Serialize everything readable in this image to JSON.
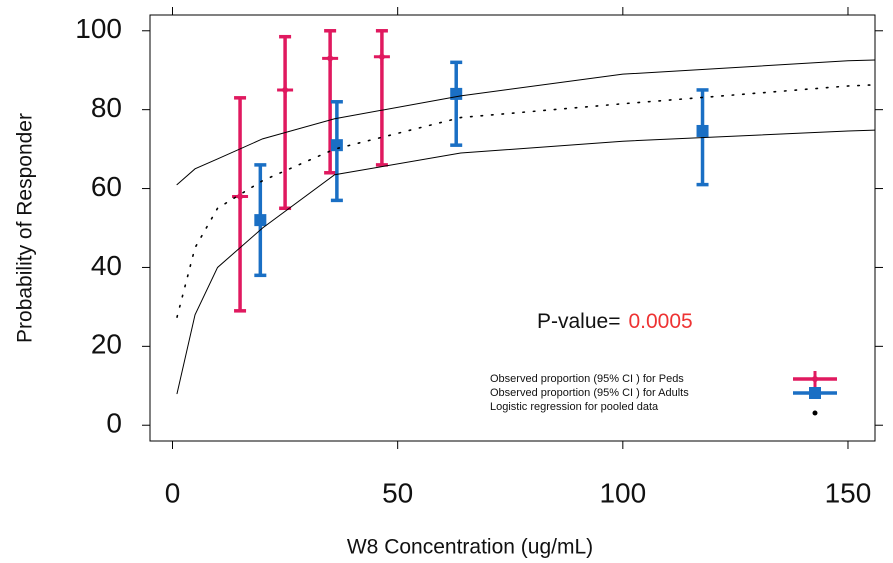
{
  "chart_data": {
    "type": "scatter",
    "x_label": "W8 Concentration (ug/mL)",
    "y_label": "Probability of Responder",
    "xlim": [
      -5,
      156
    ],
    "ylim": [
      -4,
      104
    ],
    "xticks": [
      0,
      50,
      100,
      150
    ],
    "yticks": [
      0,
      20,
      40,
      60,
      80,
      100
    ],
    "legend": "lower right",
    "annotation": {
      "text": "P-value=",
      "value": "0.0005",
      "value_color": "#ee3333"
    },
    "series": [
      {
        "name": "Observed proportion (95% CI ) for Peds",
        "color": "#e0195f",
        "marker": "cross",
        "x": [
          15,
          25,
          35,
          46.5
        ],
        "values": [
          58,
          85,
          93,
          93.4
        ],
        "lower": [
          29,
          55,
          64,
          66
        ],
        "upper": [
          83,
          98.5,
          100,
          100
        ]
      },
      {
        "name": "Observed proportion (95% CI ) for Adults",
        "color": "#1a6fc4",
        "marker": "square",
        "x": [
          19.5,
          36.5,
          63,
          117.7
        ],
        "values": [
          52,
          71,
          84,
          74.6
        ],
        "lower": [
          38,
          57,
          71,
          61
        ],
        "upper": [
          66,
          82,
          92,
          85
        ]
      },
      {
        "name": "Logistic regression for pooled data",
        "type": "line",
        "style": "dotted",
        "color": "#000000",
        "x": [
          1,
          5,
          10,
          20,
          36,
          64,
          100,
          150,
          156
        ],
        "values": [
          27.4,
          45,
          55,
          62,
          70,
          78,
          81.5,
          86,
          86.3
        ]
      },
      {
        "type": "line",
        "style": "solid",
        "color": "#000000",
        "x": [
          1,
          5,
          10,
          20,
          36,
          64,
          100,
          150,
          156
        ],
        "values": [
          8,
          28,
          40,
          50,
          63.5,
          69,
          72,
          74.6,
          74.8
        ]
      },
      {
        "type": "line",
        "style": "solid",
        "color": "#000000",
        "x": [
          1,
          5,
          10,
          20,
          36,
          64,
          100,
          150,
          156
        ],
        "values": [
          61,
          65,
          67.5,
          72.6,
          77.7,
          83.5,
          89,
          92.4,
          92.6
        ]
      }
    ]
  }
}
